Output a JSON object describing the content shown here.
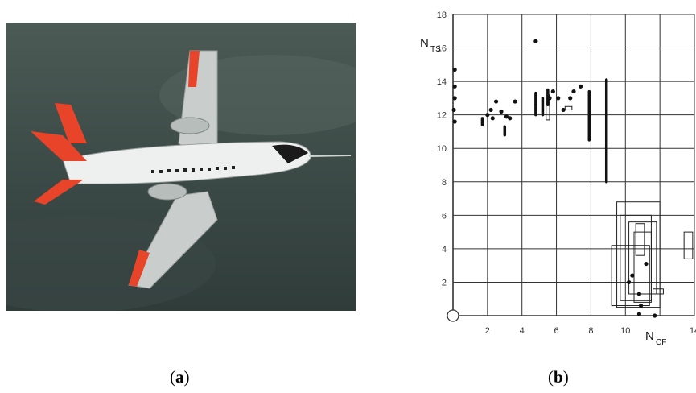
{
  "captions": {
    "a_label": "a",
    "b_label": "b"
  },
  "photo": {
    "subject": "aircraft in flight over cloud layer"
  },
  "colors": {
    "sky_top": "#4b5a55",
    "sky_bottom": "#2f3c3a",
    "fuselage": "#eef0ef",
    "accent": "#e8442a",
    "ink": "#111111"
  },
  "chart_data": {
    "type": "scatter",
    "ylabel_main": "N",
    "ylabel_sub": "TS",
    "xlabel_main": "N",
    "xlabel_sub": "CF",
    "xlim": [
      0,
      14
    ],
    "ylim": [
      0,
      18
    ],
    "xticks": [
      2,
      4,
      6,
      8,
      10,
      14
    ],
    "yticks": [
      2,
      4,
      6,
      8,
      10,
      12,
      14,
      16,
      18
    ],
    "grid": true,
    "points": [
      [
        0.1,
        14.7
      ],
      [
        0.1,
        13.7
      ],
      [
        0.1,
        13.0
      ],
      [
        0.05,
        12.3
      ],
      [
        0.1,
        11.6
      ],
      [
        2.0,
        12.0
      ],
      [
        2.2,
        12.3
      ],
      [
        2.3,
        11.8
      ],
      [
        2.5,
        12.8
      ],
      [
        2.8,
        12.2
      ],
      [
        3.1,
        11.9
      ],
      [
        3.3,
        11.8
      ],
      [
        3.6,
        12.8
      ],
      [
        4.8,
        16.4
      ],
      [
        5.6,
        13.0
      ],
      [
        5.8,
        13.4
      ],
      [
        6.1,
        13.0
      ],
      [
        6.8,
        13.0
      ],
      [
        7.0,
        13.4
      ],
      [
        7.4,
        13.7
      ],
      [
        6.4,
        12.3
      ],
      [
        10.2,
        2.0
      ],
      [
        10.4,
        2.4
      ],
      [
        10.8,
        1.3
      ],
      [
        10.9,
        0.6
      ],
      [
        11.2,
        3.1
      ],
      [
        11.7,
        0.0
      ],
      [
        10.8,
        0.1
      ]
    ],
    "vertical_bars": [
      [
        1.7,
        11.4,
        11.8
      ],
      [
        3.0,
        10.8,
        11.3
      ],
      [
        4.8,
        12.6,
        13.3
      ],
      [
        4.8,
        12.0,
        12.6
      ],
      [
        5.2,
        12.0,
        13.0
      ],
      [
        5.5,
        12.6,
        13.5
      ],
      [
        7.9,
        10.5,
        13.4
      ],
      [
        8.9,
        8.0,
        14.1
      ]
    ],
    "boxes": [
      [
        5.4,
        5.6,
        11.7,
        13.2
      ],
      [
        6.5,
        6.9,
        12.3,
        12.5
      ],
      [
        9.5,
        12.0,
        0.5,
        6.8
      ],
      [
        9.7,
        11.5,
        0.9,
        6.0
      ],
      [
        10.2,
        11.8,
        1.3,
        5.6
      ],
      [
        10.5,
        11.5,
        0.8,
        5.0
      ],
      [
        10.6,
        11.1,
        3.6,
        5.5
      ],
      [
        9.2,
        11.4,
        0.6,
        4.2
      ],
      [
        11.6,
        12.2,
        1.3,
        1.6
      ],
      [
        13.4,
        13.9,
        3.4,
        5.0
      ]
    ]
  }
}
